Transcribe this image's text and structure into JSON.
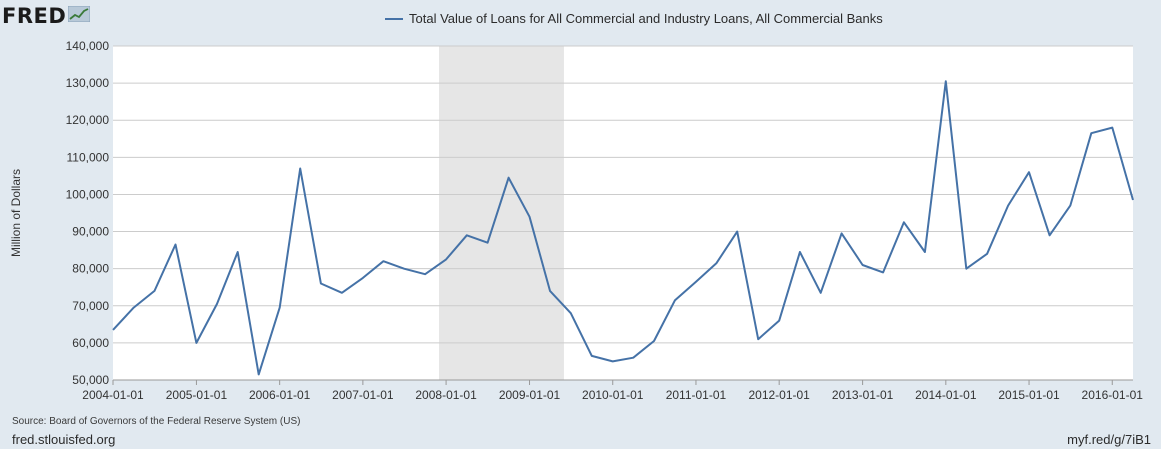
{
  "brand": {
    "logo_text": "FRED",
    "logo_icon": "line-chart-icon"
  },
  "footer": {
    "source": "Source: Board of Governors of the Federal Reserve System (US)",
    "site": "fred.stlouisfed.org",
    "short_url": "myf.red/g/7iB1"
  },
  "colors": {
    "line": "#4572a7",
    "plot_bg": "#ffffff",
    "page_bg": "#e1e9f0",
    "recession": "#e6e6e6",
    "grid": "#cccccc"
  },
  "chart_data": {
    "type": "line",
    "title": "",
    "legend_position": "top-center",
    "xlabel": "",
    "ylabel": "Million of Dollars",
    "ylim": [
      50000,
      140000
    ],
    "yticks": [
      50000,
      60000,
      70000,
      80000,
      90000,
      100000,
      110000,
      120000,
      130000,
      140000
    ],
    "ytick_labels": [
      "50,000",
      "60,000",
      "70,000",
      "80,000",
      "90,000",
      "100,000",
      "110,000",
      "120,000",
      "130,000",
      "140,000"
    ],
    "xlim": [
      "2004-01-01",
      "2016-04-01"
    ],
    "xticks": [
      "2004-01-01",
      "2005-01-01",
      "2006-01-01",
      "2007-01-01",
      "2008-01-01",
      "2009-01-01",
      "2010-01-01",
      "2011-01-01",
      "2012-01-01",
      "2013-01-01",
      "2014-01-01",
      "2015-01-01",
      "2016-01-01"
    ],
    "grid": true,
    "shaded_regions": [
      {
        "start": "2007-12-01",
        "end": "2009-06-01"
      }
    ],
    "series": [
      {
        "name": "Total Value of Loans for All Commercial and Industry Loans, All Commercial Banks",
        "x": [
          "2004-01-01",
          "2004-04-01",
          "2004-07-01",
          "2004-10-01",
          "2005-01-01",
          "2005-04-01",
          "2005-07-01",
          "2005-10-01",
          "2006-01-01",
          "2006-04-01",
          "2006-07-01",
          "2006-10-01",
          "2007-01-01",
          "2007-04-01",
          "2007-07-01",
          "2007-10-01",
          "2008-01-01",
          "2008-04-01",
          "2008-07-01",
          "2008-10-01",
          "2009-01-01",
          "2009-04-01",
          "2009-07-01",
          "2009-10-01",
          "2010-01-01",
          "2010-04-01",
          "2010-07-01",
          "2010-10-01",
          "2011-01-01",
          "2011-04-01",
          "2011-07-01",
          "2011-10-01",
          "2012-01-01",
          "2012-04-01",
          "2012-07-01",
          "2012-10-01",
          "2013-01-01",
          "2013-04-01",
          "2013-07-01",
          "2013-10-01",
          "2014-01-01",
          "2014-04-01",
          "2014-07-01",
          "2014-10-01",
          "2015-01-01",
          "2015-04-01",
          "2015-07-01",
          "2015-10-01",
          "2016-01-01",
          "2016-04-01"
        ],
        "values": [
          63500,
          69500,
          74000,
          86500,
          60000,
          70500,
          84500,
          51500,
          69500,
          107000,
          76000,
          73500,
          77500,
          82000,
          80000,
          78500,
          82500,
          89000,
          87000,
          104500,
          94000,
          74000,
          68000,
          56500,
          55000,
          56000,
          60500,
          71500,
          76500,
          81500,
          90000,
          61000,
          66000,
          84500,
          73500,
          89500,
          81000,
          79000,
          92500,
          84500,
          130500,
          80000,
          84000,
          97000,
          106000,
          89000,
          97000,
          116500,
          118000,
          98500
        ]
      }
    ]
  }
}
